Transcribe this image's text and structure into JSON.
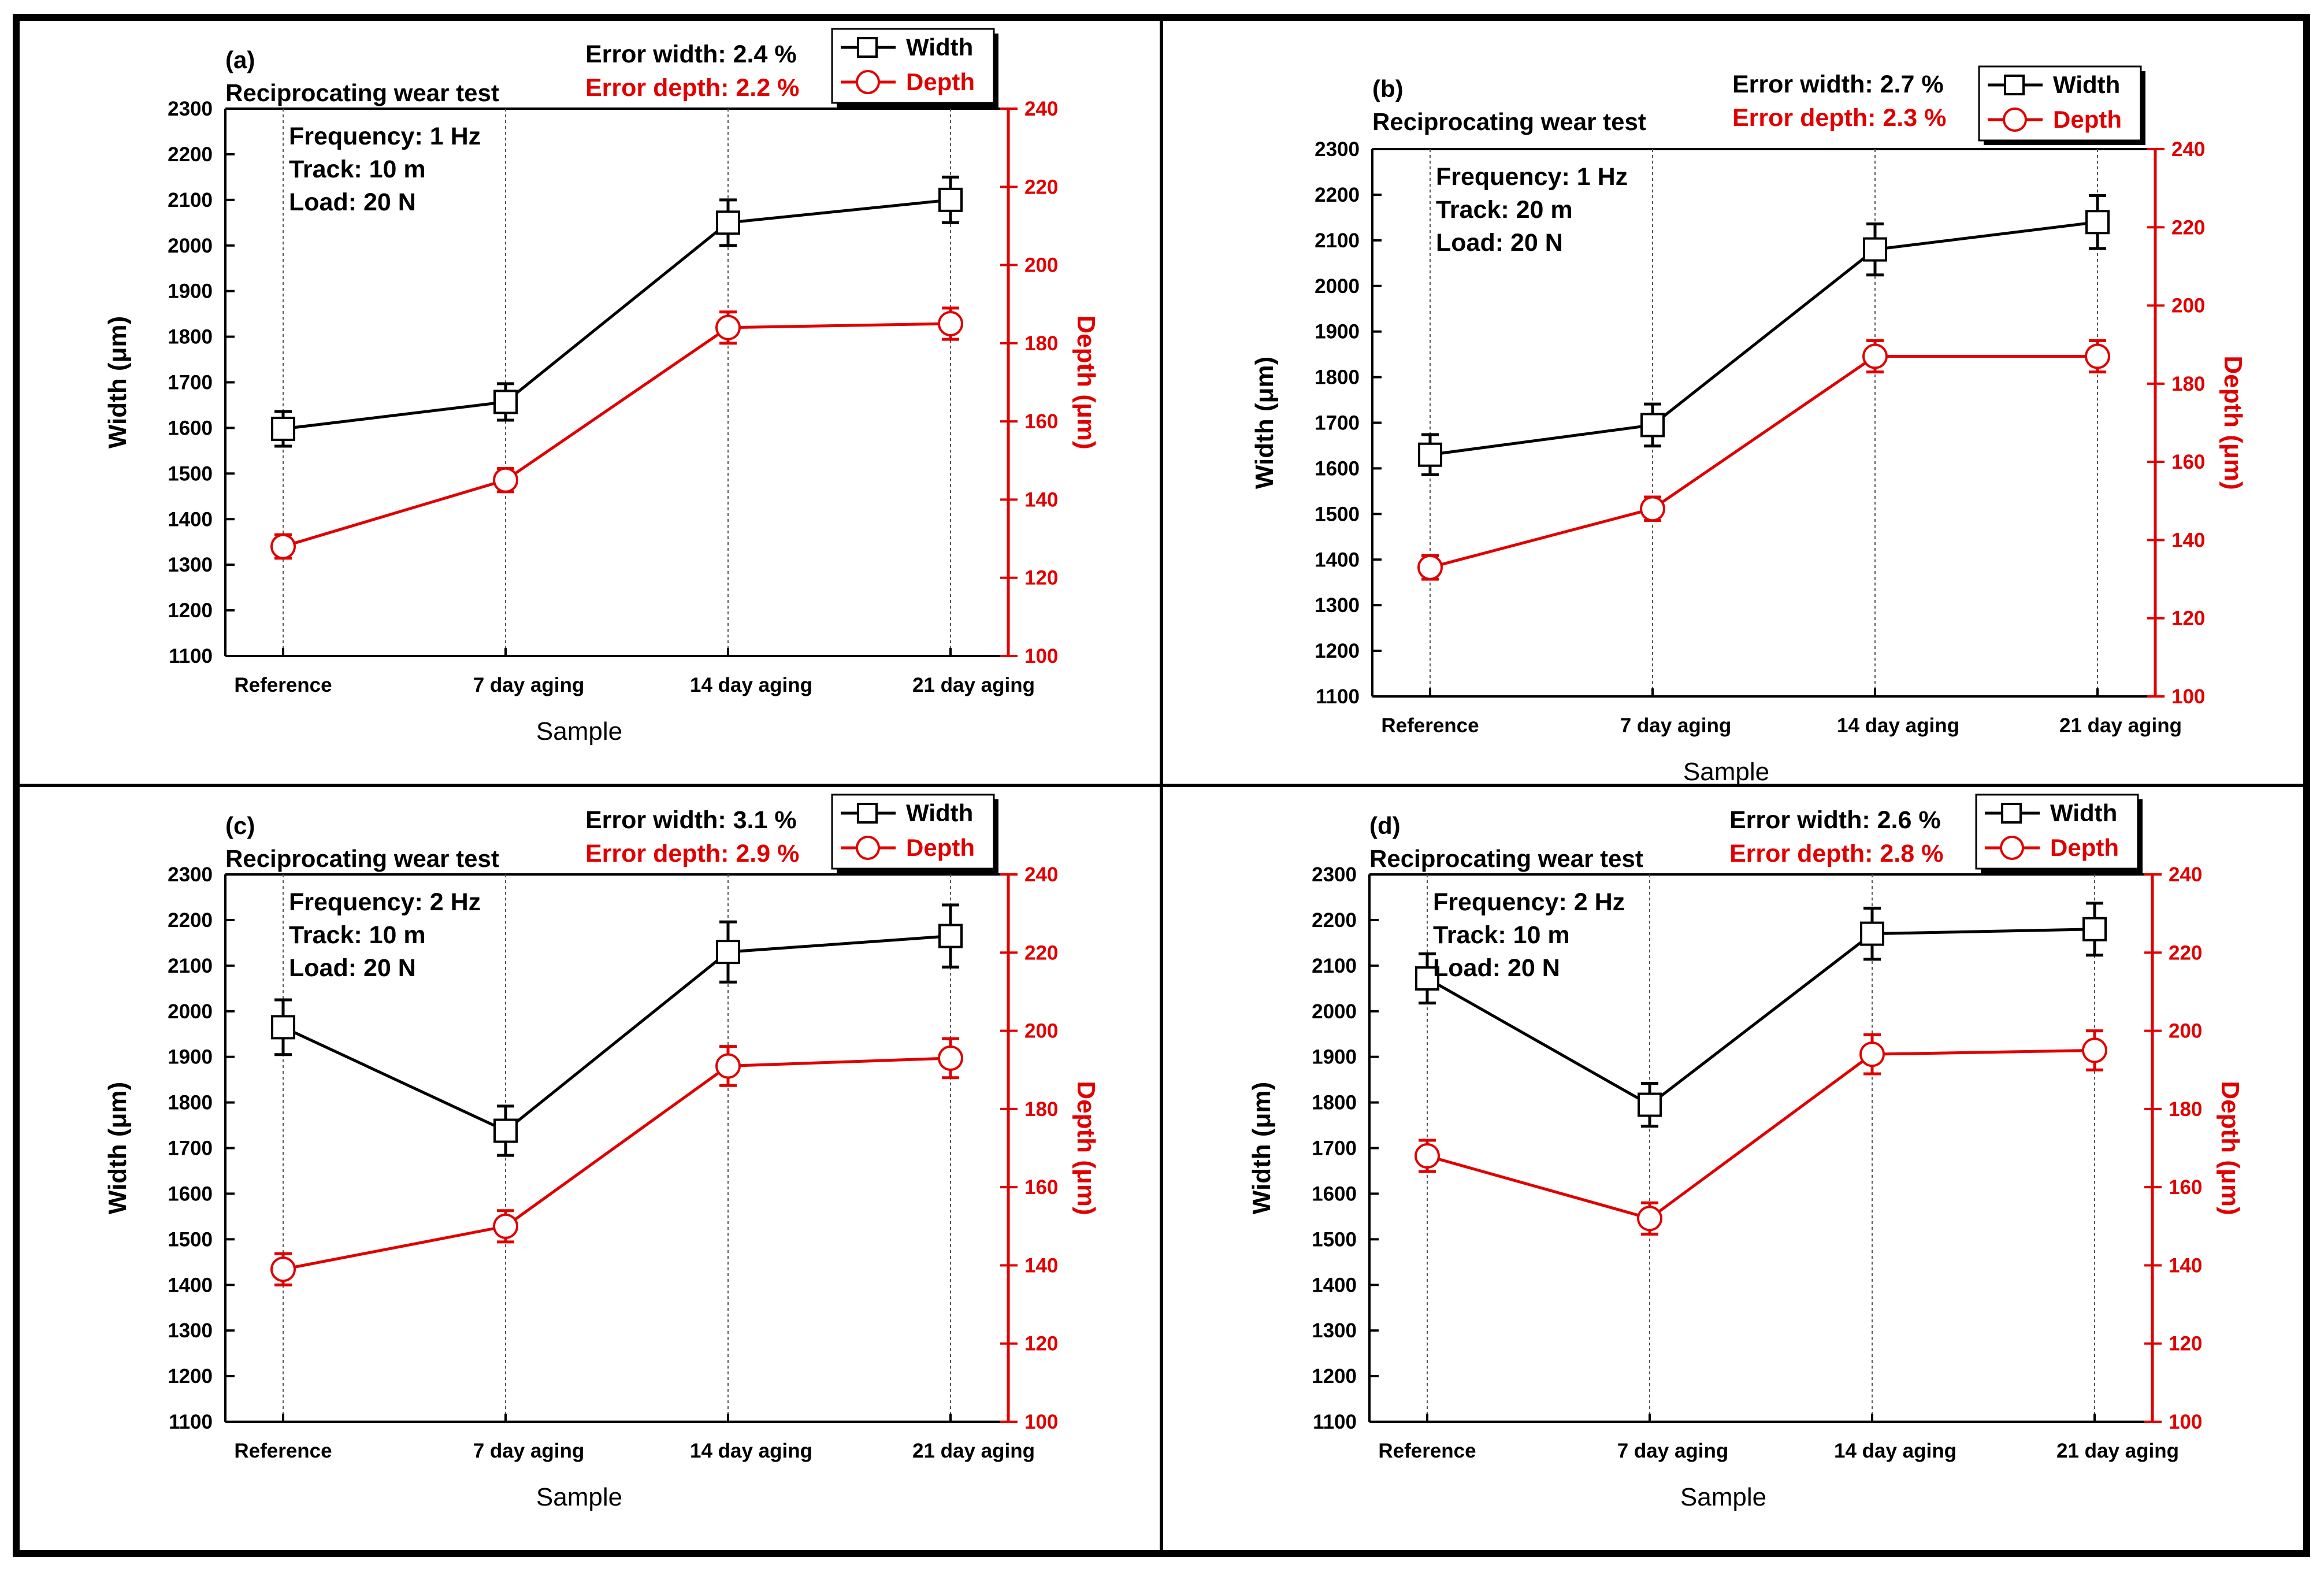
{
  "chart_data": [
    {
      "type": "line",
      "panel_label": "(a)",
      "title": "Reciprocating wear test",
      "conditions": [
        "Frequency: 1 Hz",
        "Track: 10 m",
        "Load: 20 N"
      ],
      "error_width": "Error width: 2.4 %",
      "error_depth": "Error depth: 2.2 %",
      "categories": [
        "Reference",
        "7 day  aging",
        "14 day  aging",
        "21 day  aging"
      ],
      "xlabel": "Sample",
      "ylabel": "Width (μm)",
      "y2label": "Depth (μm)",
      "ylim": [
        1100,
        2300
      ],
      "y2lim": [
        100,
        240
      ],
      "yticks": [
        1100,
        1200,
        1300,
        1400,
        1500,
        1600,
        1700,
        1800,
        1900,
        2000,
        2100,
        2200,
        2300
      ],
      "y2ticks": [
        100,
        120,
        140,
        160,
        180,
        200,
        220,
        240
      ],
      "series": [
        {
          "name": "Width",
          "axis": "left",
          "color": "#000000",
          "marker": "square",
          "values": [
            1598,
            1657,
            2050,
            2100
          ],
          "errors": [
            38,
            40,
            50,
            50
          ]
        },
        {
          "name": "Depth",
          "axis": "right",
          "color": "#e00000",
          "marker": "circle",
          "values": [
            128,
            145,
            184,
            185
          ],
          "errors": [
            3,
            3,
            4,
            4
          ]
        }
      ]
    },
    {
      "type": "line",
      "panel_label": "(b)",
      "title": "Reciprocating wear test",
      "conditions": [
        "Frequency: 1 Hz",
        "Track: 20 m",
        "Load: 20 N"
      ],
      "error_width": "Error width: 2.7 %",
      "error_depth": "Error depth: 2.3 %",
      "categories": [
        "Reference",
        "7 day  aging",
        "14 day  aging",
        "21 day  aging"
      ],
      "xlabel": "Sample",
      "ylabel": "Width (μm)",
      "y2label": "Depth (μm)",
      "ylim": [
        1100,
        2300
      ],
      "y2lim": [
        100,
        240
      ],
      "yticks": [
        1100,
        1200,
        1300,
        1400,
        1500,
        1600,
        1700,
        1800,
        1900,
        2000,
        2100,
        2200,
        2300
      ],
      "y2ticks": [
        100,
        120,
        140,
        160,
        180,
        200,
        220,
        240
      ],
      "series": [
        {
          "name": "Width",
          "axis": "left",
          "color": "#000000",
          "marker": "square",
          "values": [
            1630,
            1695,
            2080,
            2140
          ],
          "errors": [
            44,
            46,
            56,
            58
          ]
        },
        {
          "name": "Depth",
          "axis": "right",
          "color": "#e00000",
          "marker": "circle",
          "values": [
            133,
            148,
            187,
            187
          ],
          "errors": [
            3,
            3,
            4,
            4
          ]
        }
      ]
    },
    {
      "type": "line",
      "panel_label": "(c)",
      "title": "Reciprocating wear test",
      "conditions": [
        "Frequency: 2 Hz",
        "Track: 10 m",
        "Load: 20 N"
      ],
      "error_width": "Error width: 3.1 %",
      "error_depth": "Error depth: 2.9 %",
      "categories": [
        "Reference",
        "7 day  aging",
        "14 day  aging",
        "21 day  aging"
      ],
      "xlabel": "Sample",
      "ylabel": "Width (μm)",
      "y2label": "Depth (μm)",
      "ylim": [
        1100,
        2300
      ],
      "y2lim": [
        100,
        240
      ],
      "yticks": [
        1100,
        1200,
        1300,
        1400,
        1500,
        1600,
        1700,
        1800,
        1900,
        2000,
        2100,
        2200,
        2300
      ],
      "y2ticks": [
        100,
        120,
        140,
        160,
        180,
        200,
        220,
        240
      ],
      "series": [
        {
          "name": "Width",
          "axis": "left",
          "color": "#000000",
          "marker": "square",
          "values": [
            1965,
            1738,
            2130,
            2165
          ],
          "errors": [
            60,
            54,
            66,
            68
          ]
        },
        {
          "name": "Depth",
          "axis": "right",
          "color": "#e00000",
          "marker": "circle",
          "values": [
            139,
            150,
            191,
            193
          ],
          "errors": [
            4,
            4,
            5,
            5
          ]
        }
      ]
    },
    {
      "type": "line",
      "panel_label": "(d)",
      "title": "Reciprocating wear test",
      "conditions": [
        "Frequency: 2 Hz",
        "Track: 10 m",
        "Load: 20 N"
      ],
      "error_width": "Error width: 2.6 %",
      "error_depth": "Error depth: 2.8 %",
      "categories": [
        "Reference",
        "7 day  aging",
        "14 day  aging",
        "21 day  aging"
      ],
      "xlabel": "Sample",
      "ylabel": "Width (μm)",
      "y2label": "Depth (μm)",
      "ylim": [
        1100,
        2300
      ],
      "y2lim": [
        100,
        240
      ],
      "yticks": [
        1100,
        1200,
        1300,
        1400,
        1500,
        1600,
        1700,
        1800,
        1900,
        2000,
        2100,
        2200,
        2300
      ],
      "y2ticks": [
        100,
        120,
        140,
        160,
        180,
        200,
        220,
        240
      ],
      "series": [
        {
          "name": "Width",
          "axis": "left",
          "color": "#000000",
          "marker": "square",
          "values": [
            2072,
            1795,
            2170,
            2180
          ],
          "errors": [
            54,
            47,
            56,
            57
          ]
        },
        {
          "name": "Depth",
          "axis": "right",
          "color": "#e00000",
          "marker": "circle",
          "values": [
            168,
            152,
            194,
            195
          ],
          "errors": [
            4,
            4,
            5,
            5
          ]
        }
      ]
    }
  ]
}
